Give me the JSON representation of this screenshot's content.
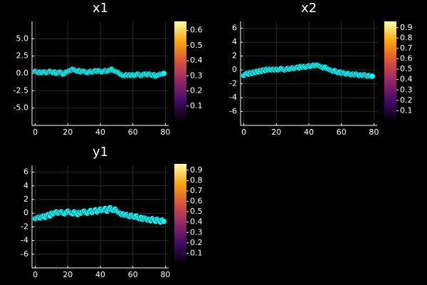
{
  "chart_data": [
    {
      "type": "scatter",
      "title": "x1",
      "x": [
        0,
        1,
        2,
        3,
        4,
        5,
        6,
        7,
        8,
        9,
        10,
        11,
        12,
        13,
        14,
        15,
        16,
        17,
        18,
        19,
        20,
        21,
        22,
        23,
        24,
        25,
        26,
        27,
        28,
        29,
        30,
        31,
        32,
        33,
        34,
        35,
        36,
        37,
        38,
        39,
        40,
        41,
        42,
        43,
        44,
        45,
        46,
        47,
        48,
        49,
        50,
        51,
        52,
        53,
        54,
        55,
        56,
        57,
        58,
        59,
        60,
        61,
        62,
        63,
        64,
        65,
        66,
        67,
        68,
        69,
        70,
        71,
        72,
        73,
        74,
        75,
        76,
        77,
        78,
        79
      ],
      "values": [
        0.3,
        0.2,
        0.1,
        0.2,
        0.1,
        0.2,
        0.2,
        0.1,
        0.2,
        0.3,
        0.2,
        0.1,
        0.2,
        0.0,
        0.1,
        0.2,
        0.1,
        -0.1,
        0.0,
        0.2,
        0.3,
        0.4,
        0.5,
        0.6,
        0.5,
        0.4,
        0.3,
        0.4,
        0.2,
        0.3,
        0.3,
        0.2,
        0.1,
        0.2,
        0.3,
        0.2,
        0.3,
        0.4,
        0.3,
        0.4,
        0.3,
        0.2,
        0.3,
        0.4,
        0.3,
        0.4,
        0.5,
        0.6,
        0.4,
        0.3,
        0.2,
        0.1,
        -0.1,
        -0.2,
        -0.3,
        -0.3,
        -0.2,
        -0.3,
        -0.2,
        -0.3,
        -0.2,
        -0.3,
        -0.2,
        -0.1,
        -0.2,
        -0.3,
        -0.2,
        -0.1,
        -0.1,
        -0.2,
        -0.1,
        -0.2,
        -0.3,
        -0.2,
        -0.4,
        -0.3,
        -0.2,
        -0.1,
        -0.1,
        0.0
      ],
      "color": "#00ffff",
      "grid": true,
      "xlim": [
        -2,
        82
      ],
      "xticks": [
        0,
        20,
        40,
        60,
        80
      ],
      "ylim": [
        -7.5,
        7.5
      ],
      "yticks": [
        {
          "value": -5,
          "label": "-5.0"
        },
        {
          "value": -2.5,
          "label": "-2.5"
        },
        {
          "value": 0,
          "label": "0.0"
        },
        {
          "value": 2.5,
          "label": "2.5"
        },
        {
          "value": 5,
          "label": "5.0"
        }
      ],
      "clim": [
        0,
        0.66
      ],
      "cticks": [
        0.1,
        0.2,
        0.3,
        0.4,
        0.5,
        0.6
      ]
    },
    {
      "type": "scatter",
      "title": "x2",
      "x": [
        0,
        1,
        2,
        3,
        4,
        5,
        6,
        7,
        8,
        9,
        10,
        11,
        12,
        13,
        14,
        15,
        16,
        17,
        18,
        19,
        20,
        21,
        22,
        23,
        24,
        25,
        26,
        27,
        28,
        29,
        30,
        31,
        32,
        33,
        34,
        35,
        36,
        37,
        38,
        39,
        40,
        41,
        42,
        43,
        44,
        45,
        46,
        47,
        48,
        49,
        50,
        51,
        52,
        53,
        54,
        55,
        56,
        57,
        58,
        59,
        60,
        61,
        62,
        63,
        64,
        65,
        66,
        67,
        68,
        69,
        70,
        71,
        72,
        73,
        74,
        75,
        76,
        77,
        78,
        79
      ],
      "values": [
        -0.8,
        -0.6,
        -0.5,
        -0.6,
        -0.4,
        -0.5,
        -0.3,
        -0.4,
        -0.2,
        -0.3,
        -0.1,
        -0.2,
        0.0,
        -0.1,
        0.1,
        0.0,
        0.1,
        0.0,
        0.1,
        0.0,
        0.1,
        0.0,
        0.1,
        0.2,
        0.1,
        0.0,
        0.1,
        0.2,
        0.1,
        0.2,
        0.3,
        0.2,
        0.3,
        0.4,
        0.3,
        0.5,
        0.4,
        0.5,
        0.4,
        0.5,
        0.6,
        0.5,
        0.6,
        0.7,
        0.6,
        0.7,
        0.6,
        0.5,
        0.4,
        0.3,
        0.4,
        0.2,
        0.1,
        0.0,
        -0.1,
        -0.2,
        -0.1,
        -0.3,
        -0.4,
        -0.3,
        -0.5,
        -0.4,
        -0.5,
        -0.6,
        -0.5,
        -0.6,
        -0.7,
        -0.6,
        -0.7,
        -0.6,
        -0.7,
        -0.8,
        -0.7,
        -0.8,
        -0.7,
        -0.8,
        -0.9,
        -0.8,
        -0.9,
        -0.9
      ],
      "color": "#00ffff",
      "grid": true,
      "xlim": [
        -2,
        82
      ],
      "xticks": [
        0,
        20,
        40,
        60,
        80
      ],
      "ylim": [
        -8,
        7
      ],
      "yticks": [
        -6,
        -4,
        -2,
        0,
        2,
        4,
        6
      ],
      "clim": [
        0,
        0.96
      ],
      "cticks": [
        0.1,
        0.2,
        0.3,
        0.4,
        0.5,
        0.6,
        0.7,
        0.8,
        0.9
      ]
    },
    {
      "type": "scatter",
      "title": "y1",
      "x": [
        0,
        1,
        2,
        3,
        4,
        5,
        6,
        7,
        8,
        9,
        10,
        11,
        12,
        13,
        14,
        15,
        16,
        17,
        18,
        19,
        20,
        21,
        22,
        23,
        24,
        25,
        26,
        27,
        28,
        29,
        30,
        31,
        32,
        33,
        34,
        35,
        36,
        37,
        38,
        39,
        40,
        41,
        42,
        43,
        44,
        45,
        46,
        47,
        48,
        49,
        50,
        51,
        52,
        53,
        54,
        55,
        56,
        57,
        58,
        59,
        60,
        61,
        62,
        63,
        64,
        65,
        66,
        67,
        68,
        69,
        70,
        71,
        72,
        73,
        74,
        75,
        76,
        77,
        78,
        79
      ],
      "values": [
        -0.8,
        -0.7,
        -0.6,
        -0.7,
        -0.5,
        -0.4,
        -0.6,
        -0.3,
        -0.2,
        -0.4,
        0.0,
        -0.1,
        0.1,
        0.2,
        0.0,
        0.1,
        0.2,
        0.0,
        -0.1,
        0.1,
        0.3,
        0.1,
        0.0,
        -0.1,
        0.2,
        0.0,
        -0.2,
        0.1,
        0.0,
        0.2,
        0.3,
        0.1,
        0.0,
        0.2,
        0.4,
        0.1,
        0.3,
        0.5,
        0.2,
        0.4,
        0.6,
        0.4,
        0.5,
        0.7,
        0.3,
        0.6,
        0.8,
        0.5,
        0.4,
        0.6,
        0.3,
        0.1,
        0.0,
        -0.2,
        -0.1,
        -0.3,
        -0.2,
        -0.4,
        -0.5,
        -0.3,
        -0.5,
        -0.6,
        -0.4,
        -0.7,
        -0.8,
        -0.6,
        -0.9,
        -0.7,
        -0.8,
        -1.0,
        -0.9,
        -1.1,
        -0.8,
        -1.0,
        -1.2,
        -0.9,
        -1.1,
        -1.3,
        -1.0,
        -1.2
      ],
      "color": "#00ffff",
      "grid": true,
      "xlim": [
        -2,
        82
      ],
      "xticks": [
        0,
        20,
        40,
        60,
        80
      ],
      "ylim": [
        -8,
        7
      ],
      "yticks": [
        -6,
        -4,
        -2,
        0,
        2,
        4,
        6
      ],
      "clim": [
        0,
        0.96
      ],
      "cticks": [
        0.1,
        0.2,
        0.3,
        0.4,
        0.5,
        0.6,
        0.7,
        0.8,
        0.9
      ]
    }
  ]
}
